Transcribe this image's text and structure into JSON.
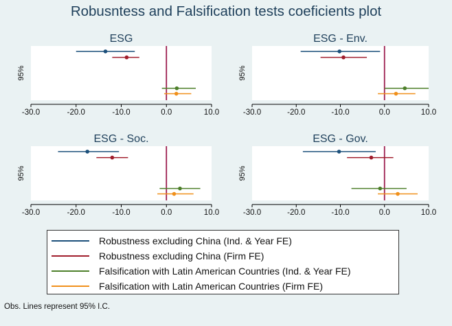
{
  "title": "Robusntess and Falsification tests coeficients plot",
  "note": "Obs. Lines represent 95% I.C.",
  "colors": {
    "background": "#eaf2f3",
    "plot_bg": "#ffffff",
    "zero_line": "#9c1c4e",
    "series": [
      "#1b4f7a",
      "#a01d2b",
      "#4d7f2a",
      "#f0901b"
    ]
  },
  "legend": [
    "Robustness excluding China (Ind. & Year FE)",
    "Robustness excluding China (Firm FE)",
    "Falsification with Latin American Countries (Ind. & Year FE)",
    "Falsification with Latin American Countries (Firm FE)"
  ],
  "chart_data": [
    {
      "type": "scatter",
      "title": "ESG",
      "ylabel": "95%",
      "xlim": [
        -30,
        10
      ],
      "xticks": [
        "-30.0",
        "-20.0",
        "-10.0",
        "0.0",
        "10.0"
      ],
      "xtick_values": [
        -30,
        -20,
        -10,
        0,
        10
      ],
      "reference_line": 0,
      "estimates": [
        {
          "point": -13.5,
          "ci": [
            -20.0,
            -7.0
          ]
        },
        {
          "point": -8.8,
          "ci": [
            -12.0,
            -6.0
          ]
        },
        {
          "point": 2.3,
          "ci": [
            -1.0,
            6.5
          ]
        },
        {
          "point": 2.2,
          "ci": [
            -0.5,
            5.5
          ]
        }
      ]
    },
    {
      "type": "scatter",
      "title": "ESG - Env.",
      "ylabel": "95%",
      "xlim": [
        -30,
        10
      ],
      "xticks": [
        "-30.0",
        "-20.0",
        "-10.0",
        "0.0",
        "10.0"
      ],
      "xtick_values": [
        -30,
        -20,
        -10,
        0,
        10
      ],
      "reference_line": 0,
      "estimates": [
        {
          "point": -10.2,
          "ci": [
            -19.0,
            -1.0
          ]
        },
        {
          "point": -9.3,
          "ci": [
            -14.5,
            -4.0
          ]
        },
        {
          "point": 4.6,
          "ci": [
            0.0,
            10.0
          ]
        },
        {
          "point": 2.6,
          "ci": [
            -1.5,
            7.0
          ]
        }
      ]
    },
    {
      "type": "scatter",
      "title": "ESG - Soc.",
      "ylabel": "95%",
      "xlim": [
        -30,
        10
      ],
      "xticks": [
        "-30.0",
        "-20.0",
        "-10.0",
        "0.0",
        "10.0"
      ],
      "xtick_values": [
        -30,
        -20,
        -10,
        0,
        10
      ],
      "reference_line": 0,
      "estimates": [
        {
          "point": -17.5,
          "ci": [
            -24.0,
            -10.5
          ]
        },
        {
          "point": -12.0,
          "ci": [
            -15.5,
            -8.5
          ]
        },
        {
          "point": 3.0,
          "ci": [
            -1.5,
            7.5
          ]
        },
        {
          "point": 1.7,
          "ci": [
            -2.0,
            6.0
          ]
        }
      ]
    },
    {
      "type": "scatter",
      "title": "ESG - Gov.",
      "ylabel": "95%",
      "xlim": [
        -30,
        10
      ],
      "xticks": [
        "-30.0",
        "-20.0",
        "-10.0",
        "0.0",
        "10.0"
      ],
      "xtick_values": [
        -30,
        -20,
        -10,
        0,
        10
      ],
      "reference_line": 0,
      "estimates": [
        {
          "point": -10.3,
          "ci": [
            -18.5,
            -2.0
          ]
        },
        {
          "point": -3.0,
          "ci": [
            -8.5,
            2.0
          ]
        },
        {
          "point": -1.0,
          "ci": [
            -7.5,
            5.0
          ]
        },
        {
          "point": 3.0,
          "ci": [
            -1.5,
            7.5
          ]
        }
      ]
    }
  ]
}
